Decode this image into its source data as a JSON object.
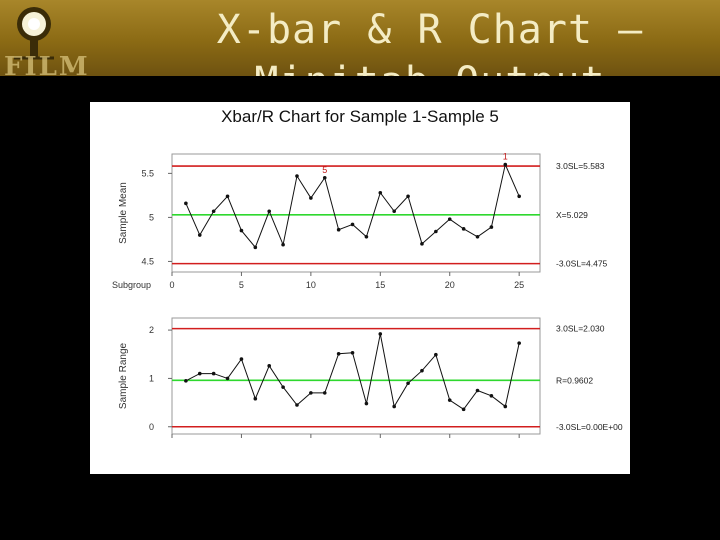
{
  "slide": {
    "title": "X-bar & R Chart – Minitab Output",
    "banner_colors": {
      "top": "#a8862a",
      "bottom": "#6e5210",
      "title_text": "#f4ecc4"
    },
    "decor_text": "FILM"
  },
  "chart_data": [
    {
      "type": "line",
      "title": "Xbar/R Chart for Sample 1-Sample 5",
      "ylabel": "Sample Mean",
      "xlabel": "Subgroup",
      "x_ticks": [
        0,
        5,
        10,
        15,
        20,
        25
      ],
      "y_ticks": [
        4.5,
        5.0,
        5.5
      ],
      "xlim": [
        0,
        26.5
      ],
      "ylim": [
        4.38,
        5.72
      ],
      "series": [
        {
          "x": [
            1,
            2,
            3,
            4,
            5,
            6,
            7,
            8,
            9,
            10,
            11,
            12,
            13,
            14,
            15,
            16,
            17,
            18,
            19,
            20,
            21,
            22,
            23,
            24,
            25
          ],
          "values": [
            5.16,
            4.8,
            5.07,
            5.24,
            4.85,
            4.66,
            5.07,
            4.69,
            5.47,
            5.22,
            5.45,
            4.86,
            4.92,
            4.78,
            5.28,
            5.07,
            5.24,
            4.7,
            4.84,
            4.98,
            4.87,
            4.78,
            4.89,
            5.6,
            5.24
          ]
        }
      ],
      "lines": [
        {
          "value": 5.583,
          "label": "3.0SL=5.583",
          "color": "#d21e1e"
        },
        {
          "value": 5.029,
          "label": "X=5.029",
          "color": "#2ed82e"
        },
        {
          "value": 4.475,
          "label": "-3.0SL=4.475",
          "color": "#d21e1e"
        }
      ],
      "annotations": [
        {
          "x": 11,
          "y": 5.45,
          "text": "5"
        },
        {
          "x": 24,
          "y": 5.6,
          "text": "1"
        }
      ]
    },
    {
      "type": "line",
      "ylabel": "Sample Range",
      "y_ticks": [
        0,
        1,
        2
      ],
      "xlim": [
        0,
        26.5
      ],
      "ylim": [
        -0.15,
        2.25
      ],
      "series": [
        {
          "x": [
            1,
            2,
            3,
            4,
            5,
            6,
            7,
            8,
            9,
            10,
            11,
            12,
            13,
            14,
            15,
            16,
            17,
            18,
            19,
            20,
            21,
            22,
            23,
            24,
            25
          ],
          "values": [
            0.95,
            1.1,
            1.1,
            1.0,
            1.4,
            0.58,
            1.26,
            0.82,
            0.45,
            0.7,
            0.7,
            1.51,
            1.53,
            0.48,
            1.92,
            0.42,
            0.9,
            1.16,
            1.49,
            0.55,
            0.36,
            0.75,
            0.64,
            0.42,
            1.73
          ]
        }
      ],
      "lines": [
        {
          "value": 2.03,
          "label": "3.0SL=2.030",
          "color": "#d21e1e"
        },
        {
          "value": 0.9602,
          "label": "R=0.9602",
          "color": "#2ed82e"
        },
        {
          "value": 0.0,
          "label": "-3.0SL=0.00E+00",
          "color": "#d21e1e"
        }
      ]
    }
  ]
}
